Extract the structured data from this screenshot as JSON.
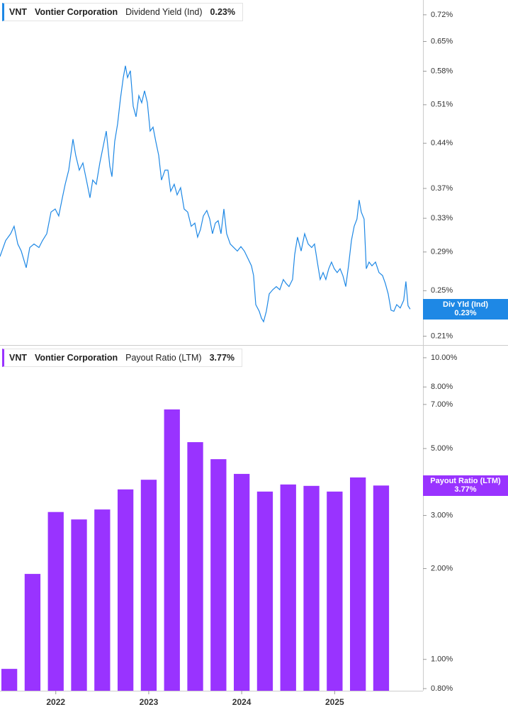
{
  "chart_data": [
    {
      "type": "line",
      "ticker": "VNT",
      "company": "Vontier Corporation",
      "log_scale": true,
      "axis_side": "right",
      "tag_name": "Div Yld (Ind)",
      "current_label": "0.23%",
      "xlim": [
        2021.4,
        2025.95
      ],
      "ylim": [
        0.203,
        0.762
      ],
      "yticks": [
        {
          "value": 0.72,
          "label": "0.72%"
        },
        {
          "value": 0.65,
          "label": "0.65%"
        },
        {
          "value": 0.58,
          "label": "0.58%"
        },
        {
          "value": 0.51,
          "label": "0.51%"
        },
        {
          "value": 0.44,
          "label": "0.44%"
        },
        {
          "value": 0.37,
          "label": "0.37%"
        },
        {
          "value": 0.33,
          "label": "0.33%"
        },
        {
          "value": 0.29,
          "label": "0.29%"
        },
        {
          "value": 0.25,
          "label": "0.25%"
        },
        {
          "value": 0.21,
          "label": "0.21%"
        }
      ],
      "x": [
        2021.4,
        2021.461,
        2021.514,
        2021.552,
        2021.591,
        2021.629,
        2021.682,
        2021.72,
        2021.766,
        2021.819,
        2021.857,
        2021.903,
        2021.949,
        2021.994,
        2022.032,
        2022.071,
        2022.101,
        2022.139,
        2022.185,
        2022.215,
        2022.253,
        2022.292,
        2022.33,
        2022.368,
        2022.398,
        2022.436,
        2022.474,
        2022.505,
        2022.543,
        2022.581,
        2022.604,
        2022.634,
        2022.665,
        2022.695,
        2022.726,
        2022.749,
        2022.772,
        2022.802,
        2022.833,
        2022.863,
        2022.894,
        2022.924,
        2022.955,
        2022.985,
        2023.015,
        2023.046,
        2023.076,
        2023.107,
        2023.137,
        2023.175,
        2023.206,
        2023.236,
        2023.274,
        2023.305,
        2023.343,
        2023.381,
        2023.419,
        2023.457,
        2023.496,
        2023.526,
        2023.556,
        2023.587,
        2023.625,
        2023.656,
        2023.686,
        2023.716,
        2023.747,
        2023.777,
        2023.808,
        2023.838,
        2023.877,
        2023.915,
        2023.953,
        2023.991,
        2024.029,
        2024.067,
        2024.105,
        2024.128,
        2024.151,
        2024.189,
        2024.212,
        2024.235,
        2024.265,
        2024.296,
        2024.334,
        2024.372,
        2024.41,
        2024.448,
        2024.478,
        2024.509,
        2024.547,
        2024.57,
        2024.6,
        2024.639,
        2024.677,
        2024.715,
        2024.753,
        2024.783,
        2024.814,
        2024.844,
        2024.875,
        2024.905,
        2024.936,
        2024.966,
        2024.996,
        2025.027,
        2025.058,
        2025.088,
        2025.119,
        2025.149,
        2025.18,
        2025.21,
        2025.24,
        2025.263,
        2025.286,
        2025.317,
        2025.34,
        2025.37,
        2025.401,
        2025.439,
        2025.477,
        2025.515,
        2025.545,
        2025.576,
        2025.606,
        2025.637,
        2025.667,
        2025.705,
        2025.743,
        2025.766,
        2025.789,
        2025.812
      ],
      "series": [
        {
          "name": "Dividend Yield (Ind)",
          "color": "#1e88e5",
          "values": [
            0.285,
            0.303,
            0.311,
            0.32,
            0.299,
            0.291,
            0.273,
            0.295,
            0.299,
            0.295,
            0.303,
            0.311,
            0.338,
            0.342,
            0.333,
            0.357,
            0.376,
            0.397,
            0.447,
            0.42,
            0.397,
            0.408,
            0.382,
            0.357,
            0.382,
            0.376,
            0.408,
            0.431,
            0.461,
            0.403,
            0.387,
            0.443,
            0.474,
            0.521,
            0.566,
            0.592,
            0.566,
            0.581,
            0.507,
            0.487,
            0.528,
            0.514,
            0.538,
            0.514,
            0.461,
            0.468,
            0.443,
            0.42,
            0.382,
            0.397,
            0.397,
            0.366,
            0.376,
            0.361,
            0.371,
            0.342,
            0.338,
            0.32,
            0.324,
            0.307,
            0.316,
            0.333,
            0.34,
            0.329,
            0.311,
            0.324,
            0.327,
            0.311,
            0.342,
            0.311,
            0.299,
            0.295,
            0.291,
            0.296,
            0.291,
            0.283,
            0.275,
            0.265,
            0.237,
            0.231,
            0.225,
            0.222,
            0.231,
            0.247,
            0.251,
            0.254,
            0.251,
            0.261,
            0.257,
            0.254,
            0.261,
            0.287,
            0.307,
            0.291,
            0.311,
            0.299,
            0.295,
            0.299,
            0.279,
            0.261,
            0.268,
            0.261,
            0.272,
            0.279,
            0.272,
            0.268,
            0.272,
            0.265,
            0.254,
            0.275,
            0.303,
            0.32,
            0.329,
            0.354,
            0.338,
            0.329,
            0.272,
            0.279,
            0.275,
            0.279,
            0.268,
            0.265,
            0.257,
            0.247,
            0.232,
            0.231,
            0.237,
            0.234,
            0.241,
            0.259,
            0.236,
            0.233
          ]
        }
      ]
    },
    {
      "type": "bar",
      "ticker": "VNT",
      "company": "Vontier Corporation",
      "log_scale": true,
      "axis_side": "right",
      "tag_name": "Payout Ratio (LTM)",
      "current_label": "3.77%",
      "xlim": [
        2021.4,
        2025.95
      ],
      "xticks": [
        2022,
        2023,
        2024,
        2025
      ],
      "ylim": [
        0.787,
        10.96
      ],
      "yticks": [
        {
          "value": 10,
          "label": "10.00%"
        },
        {
          "value": 8,
          "label": "8.00%"
        },
        {
          "value": 7,
          "label": "7.00%"
        },
        {
          "value": 5,
          "label": "5.00%"
        },
        {
          "value": 3,
          "label": "3.00%"
        },
        {
          "value": 2,
          "label": "2.00%"
        },
        {
          "value": 1,
          "label": "1.00%"
        },
        {
          "value": 0.8,
          "label": "0.80%"
        }
      ],
      "x": [
        2021.5,
        2021.75,
        2022.0,
        2022.25,
        2022.5,
        2022.75,
        2023.0,
        2023.25,
        2023.5,
        2023.75,
        2024.0,
        2024.25,
        2024.5,
        2024.75,
        2025.0,
        2025.25,
        2025.5
      ],
      "series": [
        {
          "name": "Payout Ratio (LTM)",
          "color": "#9933ff",
          "values": [
            0.93,
            1.92,
            3.08,
            2.91,
            3.14,
            3.66,
            3.94,
            6.74,
            5.25,
            4.61,
            4.12,
            3.6,
            3.8,
            3.76,
            3.6,
            4.01,
            3.77
          ]
        }
      ]
    }
  ]
}
